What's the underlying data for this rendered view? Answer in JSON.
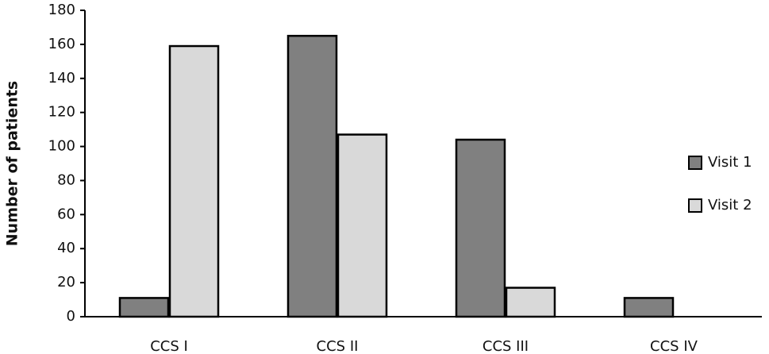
{
  "chart_data": {
    "type": "bar",
    "ylabel": "Number of patients",
    "categories": [
      "CCS I",
      "CCS II",
      "CCS III",
      "CCS IV"
    ],
    "series": [
      {
        "name": "Visit 1",
        "color": "#808080",
        "values": [
          11,
          165,
          104,
          11
        ]
      },
      {
        "name": "Visit 2",
        "color": "#d9d9d9",
        "values": [
          159,
          107,
          17,
          0
        ]
      }
    ],
    "ylim": [
      0,
      180
    ],
    "yticks": [
      0,
      20,
      40,
      60,
      80,
      100,
      120,
      140,
      160,
      180
    ],
    "legend": "right"
  }
}
